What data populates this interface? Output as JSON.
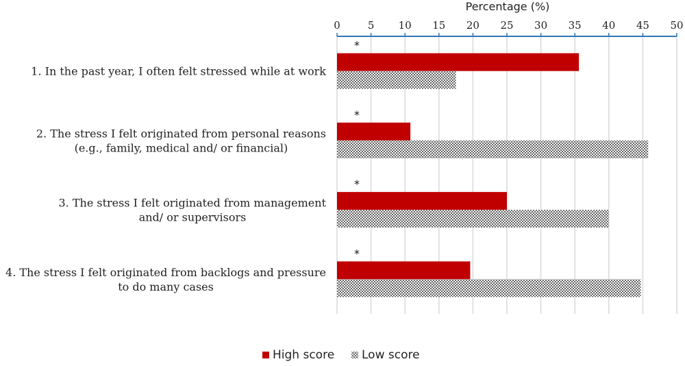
{
  "chart_data": {
    "type": "bar",
    "orientation": "horizontal",
    "xlabel": "Percentage (%)",
    "xlim": [
      0,
      50
    ],
    "xticks": [
      "0",
      "5",
      "10",
      "15",
      "20",
      "25",
      "30",
      "35",
      "40",
      "45",
      "50"
    ],
    "axis_position": "top",
    "grid": true,
    "legend_position": "bottom",
    "categories": [
      [
        "1. In the past year, I often felt stressed while at work"
      ],
      [
        "2. The stress I felt originated from personal reasons",
        "(e.g., family, medical and/ or financial)"
      ],
      [
        "3. The stress I felt originated from management",
        "and/ or supervisors"
      ],
      [
        "4. The stress I felt originated from backlogs and pressure",
        "to do many cases"
      ]
    ],
    "annotations": [
      "*",
      "*",
      "*",
      "*"
    ],
    "series": [
      {
        "name": "High score",
        "color": "#c00000",
        "pattern": "solid",
        "values": [
          35.6,
          10.8,
          25.0,
          19.6
        ]
      },
      {
        "name": "Low score",
        "color": "#7f7f7f",
        "pattern": "dotted",
        "values": [
          17.5,
          45.8,
          40.0,
          44.7
        ]
      }
    ]
  }
}
